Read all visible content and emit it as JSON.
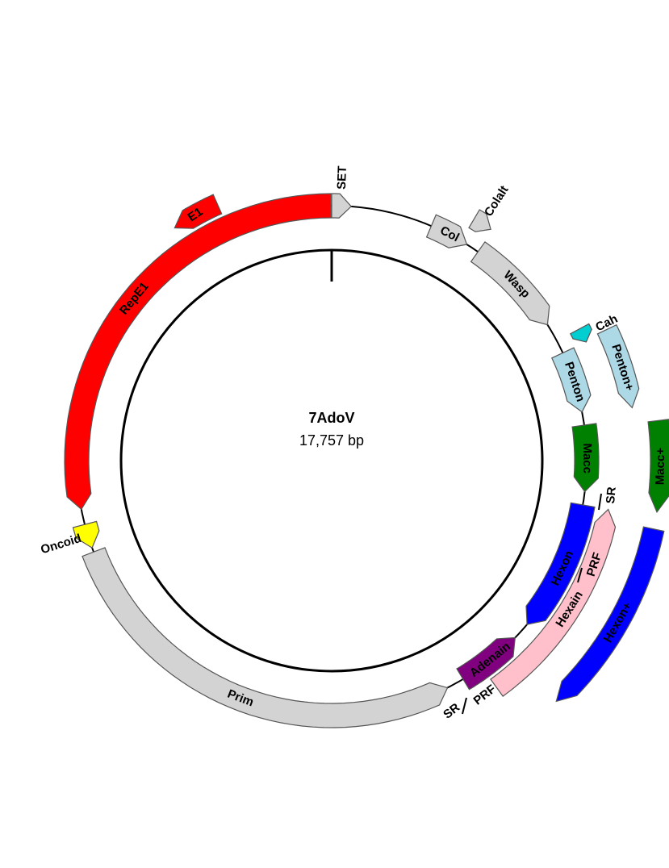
{
  "plasmid": {
    "name": "7AdoV",
    "length_label": "17,757 bp"
  },
  "features": [
    {
      "id": "set",
      "label": "SET",
      "color": "#d3d3d3",
      "start": 0.0,
      "end": 4.4,
      "ring": "backbone",
      "arrow": "cw"
    },
    {
      "id": "col",
      "label": "Col",
      "color": "#d3d3d3",
      "start": 23.0,
      "end": 32.0,
      "ring": "backbone",
      "arrow": "cw"
    },
    {
      "id": "wasp",
      "label": "Wasp",
      "color": "#d3d3d3",
      "start": 35.0,
      "end": 57.8,
      "ring": "backbone",
      "arrow": "cw"
    },
    {
      "id": "penton",
      "label": "Penton",
      "color": "#add8e6",
      "start": 65.0,
      "end": 79.0,
      "ring": "backbone",
      "arrow": "cw"
    },
    {
      "id": "macc",
      "label": "Macc",
      "color": "#008000",
      "start": 82.0,
      "end": 97.0,
      "ring": "backbone",
      "arrow": "cw"
    },
    {
      "id": "hexon",
      "label": "Hexon",
      "color": "#0000ff",
      "start": 100.0,
      "end": 130.0,
      "ring": "backbone",
      "arrow": "cw"
    },
    {
      "id": "adenain",
      "label": "Adenain",
      "color": "#800080",
      "start": 134.0,
      "end": 149.0,
      "ring": "backbone",
      "arrow": "ccw"
    },
    {
      "id": "prim",
      "label": "Prim",
      "color": "#d3d3d3",
      "start": 153.0,
      "end": 249.0,
      "ring": "backbone",
      "arrow": "ccw"
    },
    {
      "id": "oncoid",
      "label": "Oncoid",
      "color": "#ffff00",
      "start": 250.0,
      "end": 255.5,
      "ring": "backbone",
      "arrow": "ccw"
    },
    {
      "id": "repe1",
      "label": "RepE1",
      "color": "#ff0000",
      "start": 259.0,
      "end": 359.8,
      "ring": "backbone",
      "arrow": "ccw"
    },
    {
      "id": "e1",
      "label": "E1",
      "color": "#ff0000",
      "start": 326.0,
      "end": 336.0,
      "ring": "outer1",
      "arrow": "ccw"
    },
    {
      "id": "colalt",
      "label": "Colalt",
      "color": "#d3d3d3",
      "start": 30.5,
      "end": 34.5,
      "ring": "outer1",
      "arrow": "cw"
    },
    {
      "id": "cah",
      "label": "Cah",
      "color": "#00ced1",
      "start": 62.0,
      "end": 65.0,
      "ring": "outer1",
      "arrow": "cw"
    },
    {
      "id": "pentonplus",
      "label": "Penton+",
      "color": "#add8e6",
      "start": 64.5,
      "end": 80.0,
      "ring": "outer2",
      "arrow": "cw"
    },
    {
      "id": "maccplus",
      "label": "Macc+",
      "color": "#008000",
      "start": 83.0,
      "end": 99.0,
      "ring": "outer3",
      "arrow": "cw"
    },
    {
      "id": "hexain",
      "label": "Hexain",
      "color": "#ffc0cb",
      "start": 100.0,
      "end": 144.0,
      "ring": "outer1",
      "arrow": "ccw"
    },
    {
      "id": "hexonplus",
      "label": "Hexon+",
      "color": "#0000ff",
      "start": 102.0,
      "end": 137.0,
      "ring": "outer3",
      "arrow": "cw"
    }
  ],
  "site_labels": [
    {
      "id": "sr1",
      "label": "SR"
    },
    {
      "id": "prf1",
      "label": "PRF"
    },
    {
      "id": "sr2",
      "label": "SR"
    },
    {
      "id": "prf2",
      "label": "PRF"
    }
  ]
}
